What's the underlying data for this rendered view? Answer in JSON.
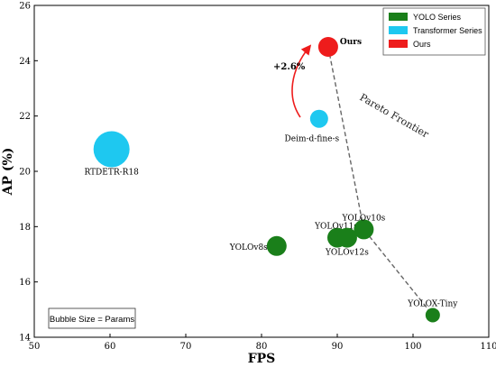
{
  "chart_data": {
    "type": "scatter",
    "title": "",
    "xlabel": "FPS",
    "ylabel": "AP (%)",
    "xlim": [
      50,
      110
    ],
    "ylim": [
      14,
      26
    ],
    "xticks": [
      50,
      60,
      70,
      80,
      90,
      100,
      110
    ],
    "yticks": [
      14,
      16,
      18,
      20,
      22,
      24,
      26
    ],
    "grid": false,
    "legend": {
      "placement": "top-right",
      "entries": [
        {
          "label": "YOLO Series",
          "color": "#1a7f1a"
        },
        {
          "label": "Transformer Series",
          "color": "#1ec8f0"
        },
        {
          "label": "Ours",
          "color": "#ee1c1c"
        }
      ]
    },
    "series": [
      {
        "name": "YOLO Series",
        "color": "#1a7f1a",
        "points": [
          {
            "label": "YOLOv8s",
            "x": 82.0,
            "y": 17.3,
            "size": 11
          },
          {
            "label": "YOLOv11s",
            "x": 90.0,
            "y": 17.6,
            "size": 11
          },
          {
            "label": "YOLOv12s",
            "x": 91.3,
            "y": 17.6,
            "size": 11
          },
          {
            "label": "YOLOv10s",
            "x": 93.5,
            "y": 17.9,
            "size": 11
          },
          {
            "label": "YOLOX-Tiny",
            "x": 102.6,
            "y": 14.8,
            "size": 8
          }
        ]
      },
      {
        "name": "Transformer Series",
        "color": "#1ec8f0",
        "points": [
          {
            "label": "RTDETR-R18",
            "x": 60.2,
            "y": 20.8,
            "size": 20
          },
          {
            "label": "Deim-d-fine-s",
            "x": 87.6,
            "y": 21.9,
            "size": 10
          }
        ]
      },
      {
        "name": "Ours",
        "color": "#ee1c1c",
        "points": [
          {
            "label": "Ours",
            "x": 88.8,
            "y": 24.5,
            "size": 11
          }
        ]
      }
    ],
    "pareto_frontier": {
      "label": "Pareto Frontier",
      "points": [
        [
          88.8,
          24.5
        ],
        [
          93.5,
          17.9
        ],
        [
          102.6,
          14.8
        ]
      ]
    },
    "annotations": {
      "improvement": "+2.6%",
      "bubble_note": "Bubble Size = Params"
    }
  }
}
